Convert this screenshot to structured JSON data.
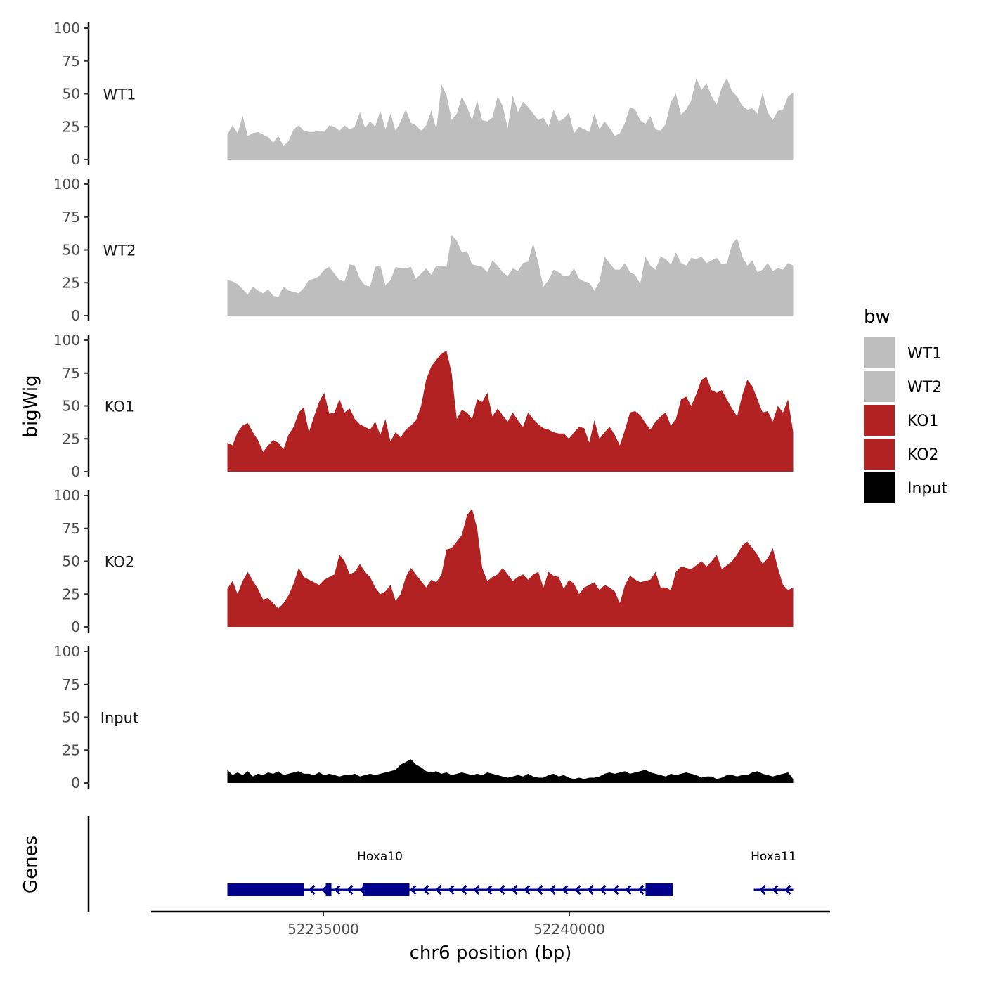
{
  "chart_data": {
    "type": "area",
    "title": "",
    "ylabel": "bigWig",
    "xlabel": "chr6 position (bp)",
    "genes_label": "Genes",
    "ylim": [
      0,
      100
    ],
    "yticks": [
      0,
      25,
      50,
      75,
      100
    ],
    "x_range": [
      52231500,
      52245300
    ],
    "data_range": [
      52233050,
      52244550
    ],
    "xticks": [
      52235000,
      52240000
    ],
    "xtick_labels": [
      "52235000",
      "52240000"
    ],
    "legend": {
      "title": "bw",
      "entries": [
        {
          "name": "WT1",
          "color": "#bebebe"
        },
        {
          "name": "WT2",
          "color": "#bebebe"
        },
        {
          "name": "KO1",
          "color": "#b22222"
        },
        {
          "name": "KO2",
          "color": "#b22222"
        },
        {
          "name": "Input",
          "color": "#000000"
        }
      ]
    },
    "series": [
      {
        "name": "WT1",
        "color": "#bebebe",
        "values": [
          19,
          26,
          20,
          33,
          18,
          20,
          21,
          19,
          17,
          13,
          18,
          10,
          14,
          23,
          26,
          22,
          21,
          21,
          22,
          21,
          26,
          25,
          22,
          26,
          23,
          25,
          36,
          24,
          29,
          25,
          37,
          23,
          35,
          22,
          29,
          38,
          28,
          26,
          22,
          26,
          37,
          23,
          57,
          49,
          30,
          35,
          48,
          40,
          30,
          45,
          30,
          29,
          32,
          48,
          41,
          24,
          49,
          36,
          44,
          40,
          35,
          30,
          32,
          25,
          38,
          29,
          31,
          36,
          20,
          25,
          23,
          21,
          35,
          23,
          29,
          24,
          18,
          20,
          28,
          40,
          38,
          30,
          27,
          33,
          23,
          22,
          27,
          44,
          50,
          34,
          38,
          45,
          62,
          53,
          58,
          48,
          42,
          55,
          62,
          52,
          48,
          41,
          38,
          39,
          35,
          51,
          36,
          30,
          37,
          38,
          48,
          51
        ]
      },
      {
        "name": "WT2",
        "color": "#bebebe",
        "values": [
          27,
          26,
          24,
          20,
          16,
          22,
          19,
          17,
          20,
          15,
          14,
          22,
          19,
          18,
          17,
          21,
          27,
          28,
          30,
          35,
          37,
          32,
          27,
          26,
          39,
          38,
          28,
          23,
          22,
          37,
          38,
          23,
          27,
          37,
          36,
          36,
          37,
          28,
          32,
          36,
          31,
          38,
          38,
          37,
          61,
          57,
          48,
          49,
          39,
          38,
          37,
          33,
          42,
          38,
          33,
          30,
          36,
          34,
          40,
          41,
          55,
          40,
          22,
          27,
          35,
          33,
          30,
          30,
          36,
          28,
          26,
          25,
          19,
          26,
          45,
          40,
          35,
          35,
          40,
          33,
          31,
          24,
          45,
          38,
          35,
          45,
          43,
          39,
          48,
          40,
          38,
          44,
          43,
          45,
          40,
          42,
          44,
          39,
          40,
          54,
          59,
          45,
          38,
          42,
          33,
          35,
          40,
          34,
          36,
          35,
          40,
          38
        ]
      },
      {
        "name": "KO1",
        "color": "#b22222",
        "values": [
          22,
          20,
          30,
          35,
          37,
          30,
          24,
          15,
          20,
          24,
          22,
          17,
          28,
          34,
          45,
          49,
          30,
          42,
          53,
          60,
          44,
          45,
          55,
          45,
          48,
          40,
          36,
          34,
          32,
          38,
          28,
          40,
          23,
          30,
          26,
          32,
          35,
          39,
          50,
          70,
          80,
          85,
          90,
          92,
          75,
          40,
          47,
          45,
          40,
          55,
          53,
          60,
          42,
          48,
          43,
          38,
          45,
          39,
          34,
          45,
          40,
          36,
          33,
          32,
          30,
          29,
          29,
          25,
          30,
          34,
          33,
          22,
          39,
          25,
          30,
          34,
          28,
          20,
          32,
          45,
          46,
          43,
          37,
          32,
          38,
          42,
          45,
          35,
          40,
          55,
          57,
          50,
          59,
          70,
          72,
          62,
          60,
          62,
          55,
          48,
          42,
          58,
          70,
          65,
          55,
          45,
          46,
          38,
          50,
          45,
          55,
          30
        ]
      },
      {
        "name": "KO2",
        "color": "#b22222",
        "values": [
          29,
          35,
          25,
          35,
          42,
          35,
          29,
          21,
          22,
          18,
          14,
          18,
          24,
          33,
          45,
          38,
          36,
          34,
          32,
          36,
          38,
          40,
          55,
          50,
          40,
          42,
          48,
          42,
          38,
          30,
          25,
          27,
          32,
          20,
          25,
          38,
          45,
          40,
          35,
          30,
          36,
          34,
          40,
          59,
          60,
          65,
          70,
          85,
          90,
          75,
          45,
          35,
          38,
          40,
          45,
          40,
          35,
          38,
          40,
          36,
          40,
          42,
          30,
          42,
          39,
          38,
          29,
          36,
          33,
          25,
          30,
          32,
          34,
          28,
          32,
          30,
          27,
          18,
          32,
          39,
          36,
          34,
          35,
          36,
          42,
          30,
          30,
          28,
          42,
          46,
          45,
          44,
          47,
          50,
          46,
          50,
          55,
          44,
          47,
          50,
          55,
          62,
          65,
          60,
          55,
          48,
          52,
          60,
          45,
          32,
          28,
          30
        ]
      },
      {
        "name": "Input",
        "color": "#000000",
        "values": [
          10,
          6,
          8,
          6,
          9,
          5,
          7,
          6,
          8,
          7,
          9,
          6,
          7,
          8,
          9,
          7,
          7,
          6,
          8,
          6,
          7,
          6,
          5,
          6,
          6,
          7,
          5,
          6,
          7,
          6,
          7,
          8,
          9,
          10,
          14,
          16,
          18,
          14,
          12,
          9,
          8,
          9,
          7,
          8,
          6,
          7,
          8,
          7,
          6,
          7,
          6,
          8,
          7,
          6,
          5,
          4,
          5,
          6,
          5,
          7,
          5,
          4,
          4,
          6,
          7,
          5,
          6,
          4,
          3,
          4,
          3,
          4,
          4,
          5,
          7,
          8,
          7,
          8,
          9,
          7,
          8,
          9,
          10,
          8,
          7,
          6,
          5,
          7,
          6,
          7,
          8,
          7,
          6,
          4,
          5,
          5,
          3,
          4,
          6,
          6,
          5,
          6,
          6,
          8,
          9,
          7,
          6,
          5,
          6,
          7,
          8,
          3
        ]
      }
    ],
    "genes": [
      {
        "name": "Hoxa10",
        "start": 52233050,
        "end": 52242100,
        "strand": "-",
        "exons": [
          [
            52233050,
            52234600
          ],
          [
            52235000,
            52235000
          ],
          [
            52233050,
            52233050
          ]
        ],
        "thick": [
          [
            52233050,
            52234600
          ],
          [
            52235050,
            52235150
          ],
          [
            52235800,
            52236750
          ],
          [
            52241550,
            52242100
          ]
        ]
      },
      {
        "name": "Hoxa11",
        "start": 52243750,
        "end": 52244550,
        "strand": "-",
        "exons": [],
        "thick": []
      }
    ]
  }
}
